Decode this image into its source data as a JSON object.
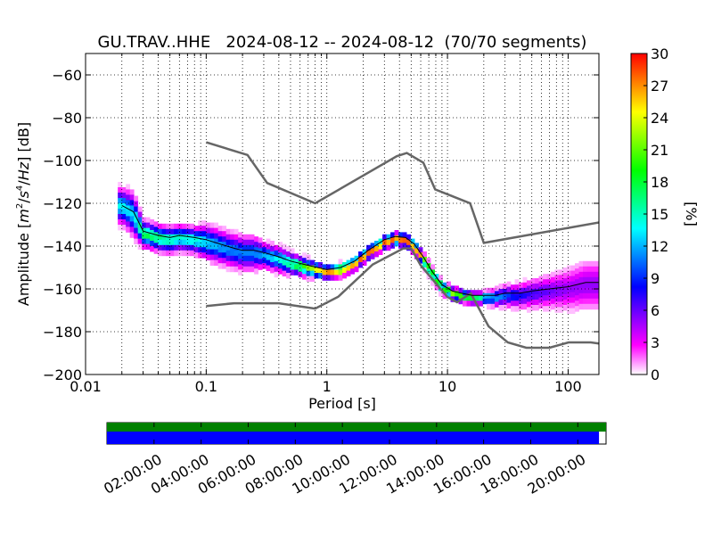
{
  "chart_data": {
    "type": "heatmap",
    "title": "GU.TRAV..HHE   2024-08-12 -- 2024-08-12  (70/70 segments)",
    "xlabel": "Period [s]",
    "ylabel_prefix": "Amplitude ",
    "ylabel_unit_open": "[",
    "ylabel_m": "m",
    "ylabel_m_exp": "2",
    "ylabel_slash1": "/",
    "ylabel_s": "s",
    "ylabel_s_exp": "4",
    "ylabel_slash2": "/",
    "ylabel_hz": "Hz",
    "ylabel_unit_close": "] [dB]",
    "xscale": "log",
    "xlim": [
      0.01,
      180
    ],
    "ylim": [
      -200,
      -50
    ],
    "grid": true,
    "xticks": [
      {
        "value": 0.01,
        "label": "0.01"
      },
      {
        "value": 0.1,
        "label": "0.1"
      },
      {
        "value": 1,
        "label": "1"
      },
      {
        "value": 10,
        "label": "10"
      },
      {
        "value": 100,
        "label": "100"
      }
    ],
    "yticks": [
      {
        "value": -60,
        "label": "−60"
      },
      {
        "value": -80,
        "label": "−80"
      },
      {
        "value": -100,
        "label": "−100"
      },
      {
        "value": -120,
        "label": "−120"
      },
      {
        "value": -140,
        "label": "−140"
      },
      {
        "value": -160,
        "label": "−160"
      },
      {
        "value": -180,
        "label": "−180"
      },
      {
        "value": -200,
        "label": "−200"
      }
    ],
    "colorbar": {
      "label": "[%]",
      "range": [
        0,
        30
      ],
      "ticks": [
        {
          "value": 0,
          "label": "0"
        },
        {
          "value": 3,
          "label": "3"
        },
        {
          "value": 6,
          "label": "6"
        },
        {
          "value": 9,
          "label": "9"
        },
        {
          "value": 12,
          "label": "12"
        },
        {
          "value": 15,
          "label": "15"
        },
        {
          "value": 18,
          "label": "18"
        },
        {
          "value": 21,
          "label": "21"
        },
        {
          "value": 24,
          "label": "24"
        },
        {
          "value": 27,
          "label": "27"
        },
        {
          "value": 30,
          "label": "30"
        }
      ],
      "colors": [
        "#ffffff",
        "#ff00ff",
        "#8000ff",
        "#0000ff",
        "#0080ff",
        "#00ffff",
        "#00ff80",
        "#00ff00",
        "#80ff00",
        "#ffff00",
        "#ff8000",
        "#ff0000"
      ]
    },
    "noise_models": {
      "high": {
        "x": [
          0.1,
          0.22,
          0.32,
          0.8,
          3.8,
          4.6,
          6.3,
          7.9,
          15.4,
          20,
          354.8
        ],
        "y": [
          -91.5,
          -97.4,
          -110.5,
          -120,
          -98,
          -96.5,
          -101,
          -113.5,
          -120,
          -138.5,
          -126
        ]
      },
      "low": {
        "x": [
          0.1,
          0.17,
          0.4,
          0.8,
          1.24,
          2.4,
          4.3,
          5,
          6,
          10,
          12,
          15.6,
          21.9,
          31.6,
          45,
          70,
          101,
          154,
          180
        ],
        "y": [
          -168,
          -166.7,
          -166.7,
          -169.2,
          -163.7,
          -148.6,
          -141.1,
          -141.1,
          -149,
          -163.8,
          -166.2,
          -162.1,
          -177.5,
          -185,
          -187.5,
          -187.5,
          -185,
          -185,
          -185.5
        ]
      }
    },
    "mode_curve": {
      "x": [
        0.02,
        0.025,
        0.03,
        0.04,
        0.05,
        0.06,
        0.08,
        0.1,
        0.13,
        0.17,
        0.2,
        0.25,
        0.3,
        0.4,
        0.5,
        0.7,
        1,
        1.3,
        1.7,
        2.2,
        3,
        3.7,
        4.5,
        5.3,
        6.3,
        7.5,
        9,
        11,
        13,
        16,
        20,
        25,
        30,
        40,
        50,
        70,
        100,
        140,
        180
      ],
      "y": [
        -121,
        -124,
        -133,
        -135,
        -136,
        -135,
        -136,
        -137,
        -139,
        -141,
        -142,
        -142,
        -143,
        -145,
        -147,
        -149,
        -151,
        -150,
        -147,
        -142,
        -137,
        -135.5,
        -136,
        -139,
        -145,
        -152,
        -158,
        -161,
        -162,
        -163,
        -163,
        -163,
        -162,
        -162,
        -161,
        -160,
        -159,
        -157,
        -157
      ]
    },
    "density": [
      {
        "x": 0.02,
        "c": -120,
        "s": 4,
        "e": 10,
        "p": 14
      },
      {
        "x": 0.025,
        "c": -124,
        "s": 5,
        "e": 12,
        "p": 13
      },
      {
        "x": 0.03,
        "c": -133,
        "s": 3,
        "e": 9,
        "p": 18
      },
      {
        "x": 0.04,
        "c": -135,
        "s": 3,
        "e": 8,
        "p": 17
      },
      {
        "x": 0.05,
        "c": -136,
        "s": 3,
        "e": 8,
        "p": 16
      },
      {
        "x": 0.06,
        "c": -135,
        "s": 3,
        "e": 8,
        "p": 15
      },
      {
        "x": 0.08,
        "c": -136,
        "s": 3,
        "e": 8,
        "p": 15
      },
      {
        "x": 0.1,
        "c": -137,
        "s": 4,
        "e": 8,
        "p": 13
      },
      {
        "x": 0.13,
        "c": -139,
        "s": 4,
        "e": 10,
        "p": 12
      },
      {
        "x": 0.17,
        "c": -141,
        "s": 4,
        "e": 14,
        "p": 11
      },
      {
        "x": 0.2,
        "c": -142,
        "s": 4,
        "e": 15,
        "p": 11
      },
      {
        "x": 0.25,
        "c": -142,
        "s": 4,
        "e": 14,
        "p": 11
      },
      {
        "x": 0.3,
        "c": -143,
        "s": 3,
        "e": 10,
        "p": 12
      },
      {
        "x": 0.4,
        "c": -145,
        "s": 3,
        "e": 7,
        "p": 14
      },
      {
        "x": 0.5,
        "c": -147,
        "s": 2.5,
        "e": 6,
        "p": 17
      },
      {
        "x": 0.7,
        "c": -149,
        "s": 2,
        "e": 5,
        "p": 22
      },
      {
        "x": 1,
        "c": -151,
        "s": 1.5,
        "e": 4,
        "p": 27
      },
      {
        "x": 1.3,
        "c": -150,
        "s": 1.5,
        "e": 4,
        "p": 28
      },
      {
        "x": 1.7,
        "c": -147,
        "s": 1.5,
        "e": 4,
        "p": 28
      },
      {
        "x": 2.2,
        "c": -142,
        "s": 1.5,
        "e": 4,
        "p": 28
      },
      {
        "x": 3,
        "c": -137,
        "s": 1.5,
        "e": 4,
        "p": 28
      },
      {
        "x": 3.7,
        "c": -135.5,
        "s": 1.5,
        "e": 5,
        "p": 28
      },
      {
        "x": 4.5,
        "c": -136,
        "s": 1.5,
        "e": 4,
        "p": 28
      },
      {
        "x": 5.3,
        "c": -139,
        "s": 1.5,
        "e": 4,
        "p": 28
      },
      {
        "x": 6.3,
        "c": -145,
        "s": 1.5,
        "e": 5,
        "p": 26
      },
      {
        "x": 7.5,
        "c": -152,
        "s": 1.5,
        "e": 6,
        "p": 24
      },
      {
        "x": 9,
        "c": -158,
        "s": 1.5,
        "e": 6,
        "p": 22
      },
      {
        "x": 11,
        "c": -161,
        "s": 1.5,
        "e": 5,
        "p": 22
      },
      {
        "x": 13,
        "c": -162,
        "s": 1.5,
        "e": 4,
        "p": 20
      },
      {
        "x": 16,
        "c": -163,
        "s": 1.5,
        "e": 4,
        "p": 18
      },
      {
        "x": 20,
        "c": -163,
        "s": 1.5,
        "e": 5,
        "p": 15
      },
      {
        "x": 25,
        "c": -163,
        "s": 2,
        "e": 6,
        "p": 12
      },
      {
        "x": 30,
        "c": -162,
        "s": 2.5,
        "e": 7,
        "p": 10
      },
      {
        "x": 40,
        "c": -162,
        "s": 3,
        "e": 9,
        "p": 8
      },
      {
        "x": 50,
        "c": -161,
        "s": 3.5,
        "e": 10,
        "p": 7
      },
      {
        "x": 70,
        "c": -160,
        "s": 4,
        "e": 12,
        "p": 6
      },
      {
        "x": 100,
        "c": -159,
        "s": 5,
        "e": 14,
        "p": 5
      },
      {
        "x": 140,
        "c": -157,
        "s": 6,
        "e": 15,
        "p": 5
      },
      {
        "x": 180,
        "c": -157,
        "s": 6,
        "e": 15,
        "p": 5
      }
    ],
    "timeline": {
      "labels": [
        "02:00:00",
        "04:00:00",
        "06:00:00",
        "08:00:00",
        "10:00:00",
        "12:00:00",
        "14:00:00",
        "16:00:00",
        "18:00:00",
        "20:00:00"
      ],
      "label_hours": [
        2,
        4,
        6,
        8,
        10,
        12,
        14,
        16,
        18,
        20
      ],
      "range_hours": [
        0,
        21.2
      ],
      "available": {
        "start": 0,
        "end": 21.2,
        "color": "#008000"
      },
      "used": {
        "start": 0,
        "end": 20.9,
        "color": "#0000ff"
      }
    }
  }
}
